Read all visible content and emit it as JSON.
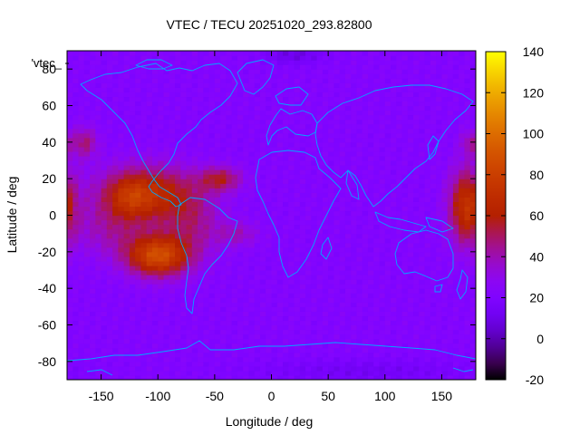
{
  "chart_data": {
    "type": "heatmap",
    "title": "VTEC / TECU 20251020_293.82800",
    "xlabel": "Longitude / deg",
    "ylabel": "Latitude / deg",
    "key_label": "'vtec_",
    "xlim": [
      -180,
      180
    ],
    "ylim": [
      -90,
      90
    ],
    "x_ticks": [
      -150,
      -100,
      -50,
      0,
      50,
      100,
      150
    ],
    "y_ticks": [
      -80,
      -60,
      -40,
      -20,
      0,
      20,
      40,
      60,
      80
    ],
    "colorbar": {
      "range": [
        -20,
        140
      ],
      "ticks": [
        -20,
        0,
        20,
        40,
        60,
        80,
        100,
        120,
        140
      ],
      "palette": "gnuplot-rgbformulae-7-5-15"
    },
    "grid_resolution_deg": {
      "lon": 5,
      "lat": 2.5
    },
    "features": [
      {
        "lon": -110,
        "lat": 12,
        "lon_width": 50,
        "lat_width": 18,
        "value": 52
      },
      {
        "lon": -125,
        "lat": 10,
        "lon_width": 20,
        "lat_width": 12,
        "value": 18
      },
      {
        "lon": -100,
        "lat": -22,
        "lon_width": 32,
        "lat_width": 13,
        "value": 70
      },
      {
        "lon": -140,
        "lat": -8,
        "lon_width": 40,
        "lat_width": 18,
        "value": 18
      },
      {
        "lon": -70,
        "lat": -5,
        "lon_width": 30,
        "lat_width": 22,
        "value": 22
      },
      {
        "lon": -45,
        "lat": 20,
        "lon_width": 22,
        "lat_width": 8,
        "value": 35
      },
      {
        "lon": -30,
        "lat": -10,
        "lon_width": 22,
        "lat_width": 8,
        "value": 18
      },
      {
        "lon": -165,
        "lat": 40,
        "lon_width": 14,
        "lat_width": 10,
        "value": 28
      },
      {
        "lon": 172,
        "lat": 5,
        "lon_width": 18,
        "lat_width": 24,
        "value": 55
      },
      {
        "lon": 175,
        "lat": 40,
        "lon_width": 10,
        "lat_width": 8,
        "value": 20
      },
      {
        "lon": 20,
        "lat": 88,
        "lon_width": 30,
        "lat_width": 6,
        "value": -15
      },
      {
        "lon": 80,
        "lat": -85,
        "lon_width": 120,
        "lat_width": 8,
        "value": -10
      }
    ],
    "background_value": 22
  }
}
